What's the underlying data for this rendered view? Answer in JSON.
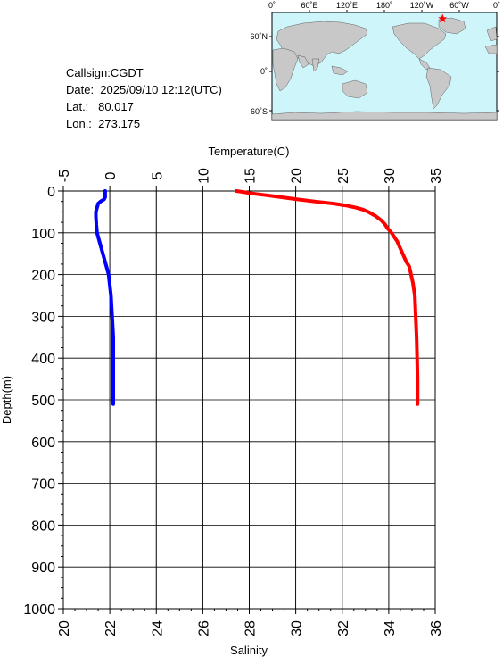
{
  "station": {
    "callsign": "Callsign:CGDT",
    "date": "Date:  2025/09/10 12:12(UTC)",
    "lat": "Lat.:   80.017",
    "lon": "Lon.:  273.175"
  },
  "map": {
    "top_labels": [
      "0˚",
      "60˚E",
      "120˚E",
      "180˚",
      "120˚W",
      "60˚W",
      "0˚"
    ],
    "left_labels": [
      "60˚N",
      "0˚",
      "60˚S"
    ],
    "ocean_color": "#cef5fa",
    "land_color": "#c8c8c8",
    "marker_color": "#ff0000",
    "marker_lat": 80.017,
    "marker_lon": 273.175
  },
  "chart_data": {
    "type": "line",
    "ylabel": "Depth(m)",
    "ylim": [
      1000,
      0
    ],
    "yticks": [
      "0",
      "100",
      "200",
      "300",
      "400",
      "500",
      "600",
      "700",
      "800",
      "900",
      "1000"
    ],
    "top_axis": {
      "label": "Temperature(C)",
      "range": [
        -5,
        35
      ],
      "ticks": [
        "-5",
        "0",
        "5",
        "10",
        "15",
        "20",
        "25",
        "30",
        "35"
      ]
    },
    "bottom_axis": {
      "label": "Salinity",
      "range": [
        20,
        36
      ],
      "ticks": [
        "20",
        "22",
        "24",
        "26",
        "28",
        "30",
        "32",
        "34",
        "36"
      ]
    },
    "grid": true,
    "series": [
      {
        "axis": "top",
        "color": "#ff0000",
        "depth": [
          0,
          2,
          5,
          8,
          10,
          15,
          20,
          25,
          30,
          35,
          40,
          45,
          50,
          60,
          70,
          80,
          90,
          100,
          110,
          120,
          130,
          140,
          150,
          160,
          170,
          180,
          190,
          200,
          220,
          250,
          300,
          350,
          400,
          450,
          500,
          510
        ],
        "values": [
          13.6,
          14.2,
          15.0,
          16.0,
          16.8,
          18.5,
          20.2,
          22.0,
          24.0,
          25.5,
          26.5,
          27.3,
          27.8,
          28.6,
          29.2,
          29.6,
          29.9,
          30.3,
          30.6,
          30.9,
          31.1,
          31.3,
          31.5,
          31.7,
          31.9,
          32.2,
          32.3,
          32.4,
          32.6,
          32.8,
          32.9,
          33.0,
          33.05,
          33.1,
          33.1,
          33.1
        ]
      },
      {
        "axis": "bottom",
        "color": "#0000ff",
        "depth": [
          0,
          5,
          10,
          15,
          20,
          25,
          30,
          40,
          50,
          60,
          80,
          100,
          120,
          150,
          180,
          200,
          250,
          300,
          350,
          400,
          450,
          500,
          510
        ],
        "values": [
          21.8,
          21.8,
          21.8,
          21.8,
          21.75,
          21.6,
          21.5,
          21.45,
          21.4,
          21.4,
          21.42,
          21.45,
          21.55,
          21.7,
          21.85,
          21.95,
          22.05,
          22.1,
          22.15,
          22.15,
          22.15,
          22.15,
          22.15
        ]
      }
    ]
  }
}
